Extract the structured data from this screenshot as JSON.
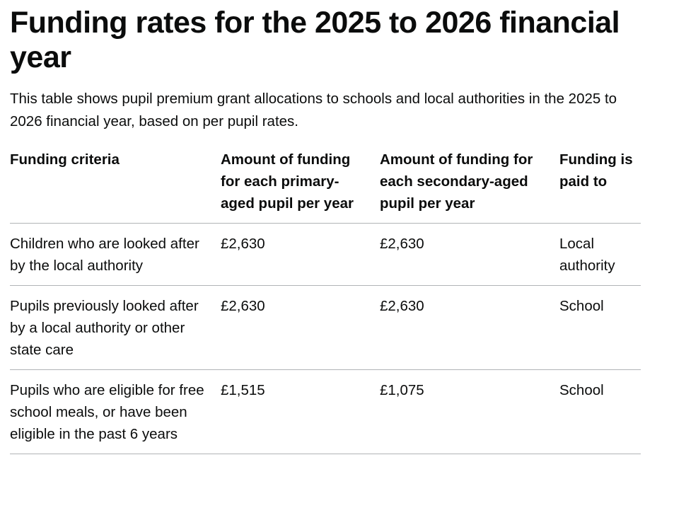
{
  "title": "Funding rates for the 2025 to 2026 financial year",
  "description": "This table shows pupil premium grant allocations to schools and local authorities in the 2025 to 2026 financial year, based on per pupil rates.",
  "table": {
    "headers": [
      "Funding criteria",
      "Amount of funding for each primary-aged pupil per year",
      "Amount of funding for each secondary-aged pupil per year",
      "Funding is paid to"
    ],
    "rows": [
      [
        "Children who are looked after by the local authority",
        "£2,630",
        "£2,630",
        "Local authority"
      ],
      [
        "Pupils previously looked after by a local authority or other state care",
        "£2,630",
        "£2,630",
        "School"
      ],
      [
        "Pupils who are eligible for free school meals, or have been eligible in the past 6 years",
        "£1,515",
        "£1,075",
        "School"
      ]
    ]
  }
}
